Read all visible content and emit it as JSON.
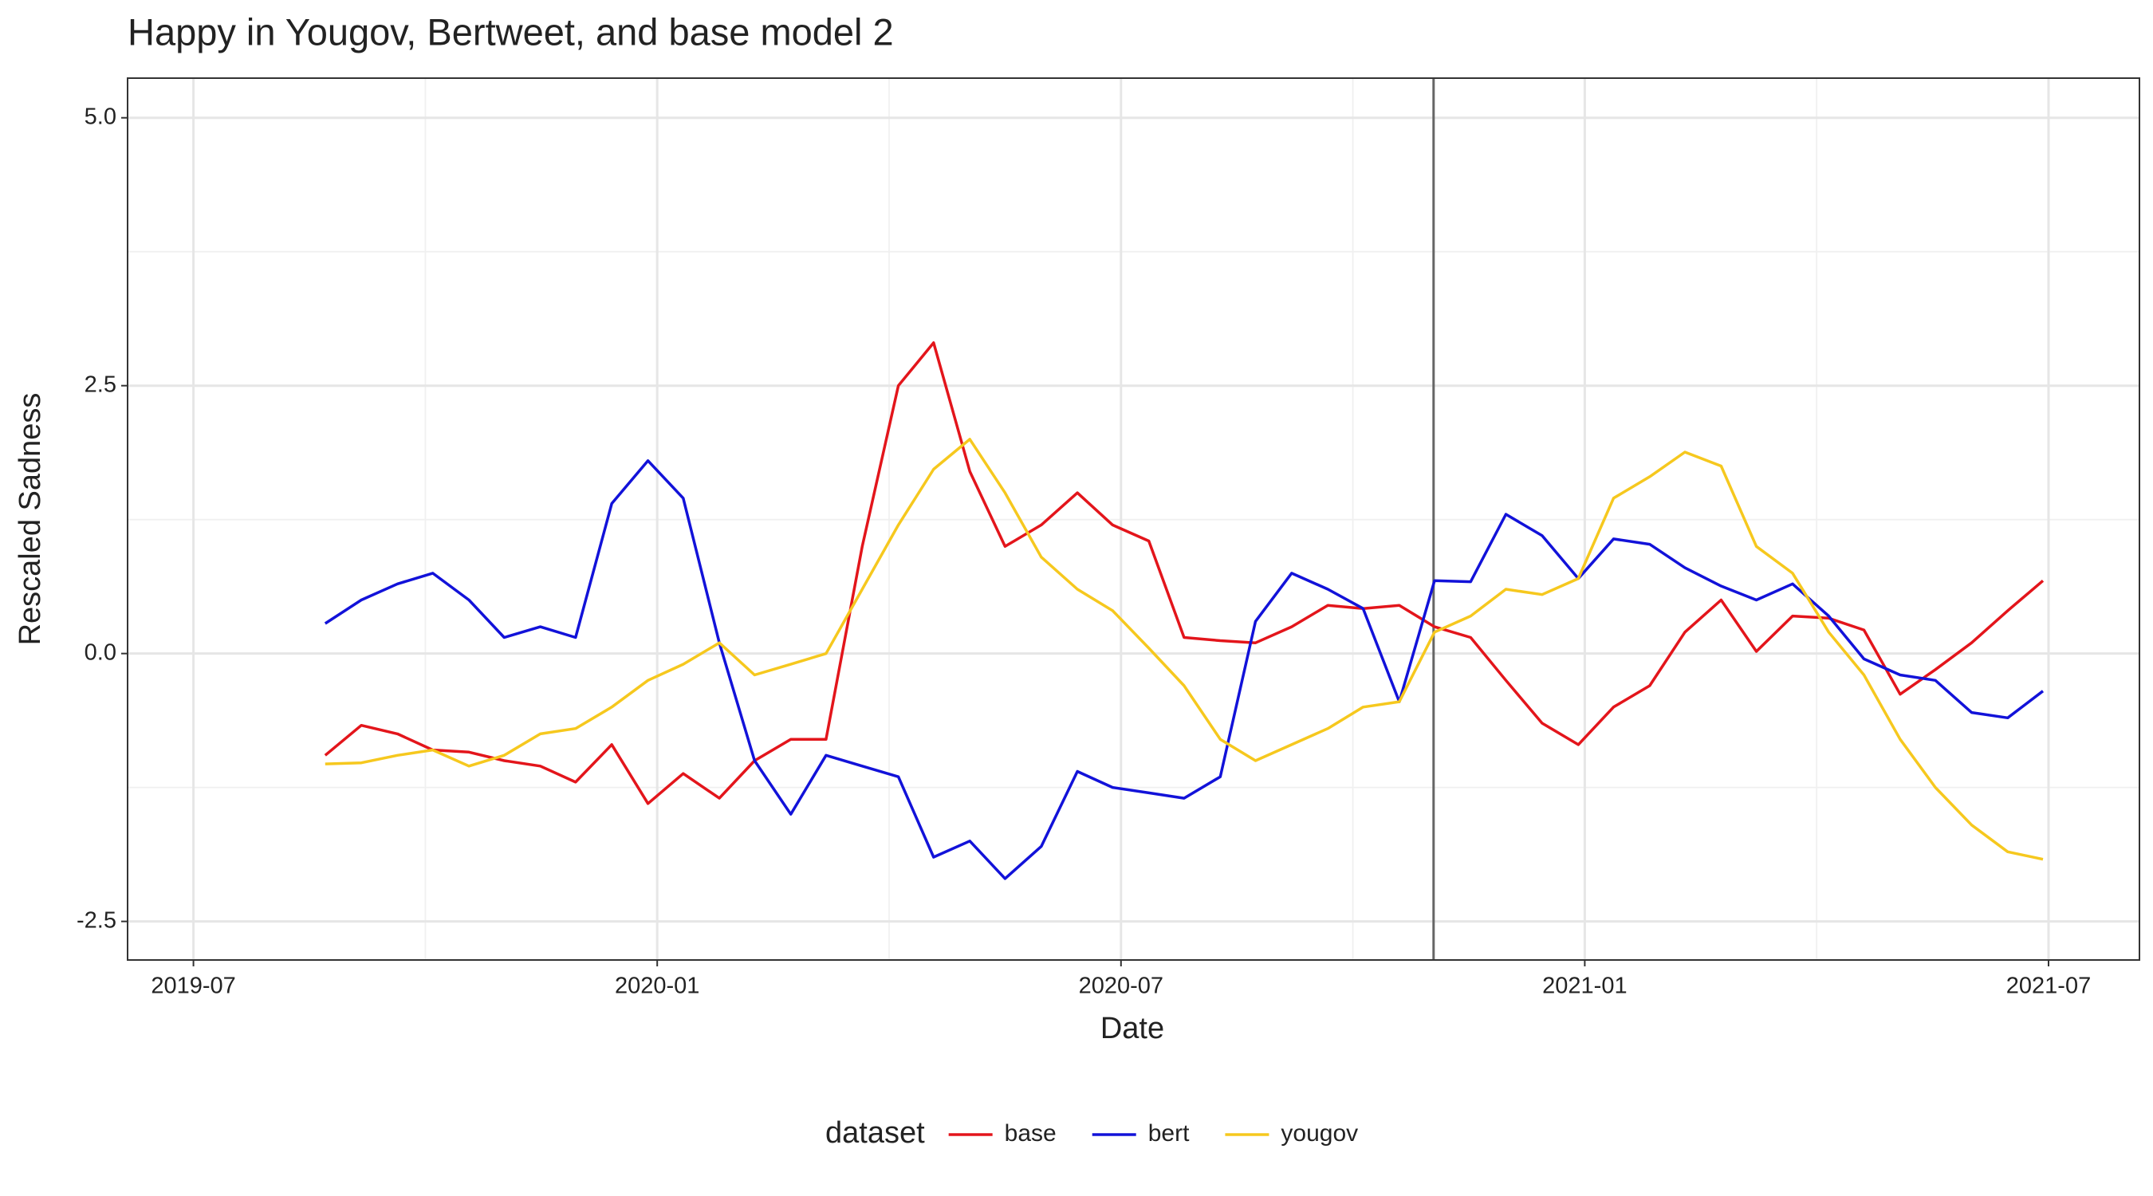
{
  "chart_data": {
    "type": "line",
    "title": "Happy in Yougov, Bertweet, and base model 2",
    "x_label": "Date",
    "y_label": "Rescaled Sadness",
    "legend_title": "dataset",
    "legend_position": "bottom",
    "grid": true,
    "xlim": [
      2019.429,
      2021.598
    ],
    "ylim": [
      -2.86,
      5.37
    ],
    "xticks": [
      {
        "value": 2019.5,
        "label": "2019-07"
      },
      {
        "value": 2020.0,
        "label": "2020-01"
      },
      {
        "value": 2020.5,
        "label": "2020-07"
      },
      {
        "value": 2021.0,
        "label": "2021-01"
      },
      {
        "value": 2021.5,
        "label": "2021-07"
      }
    ],
    "yticks": [
      -2.5,
      {
        "value": 0,
        "label": "0.0"
      },
      2.5,
      {
        "value": 5,
        "label": "5.0"
      }
    ],
    "minor_xticks": [
      2019.75,
      2020.25,
      2020.75,
      2021.25
    ],
    "minor_yticks": [
      -1.25,
      1.25,
      3.75
    ],
    "vline": 2020.837,
    "x": [
      2019.642,
      2019.681,
      2019.72,
      2019.758,
      2019.797,
      2019.835,
      2019.874,
      2019.912,
      2019.951,
      2019.99,
      2020.028,
      2020.067,
      2020.105,
      2020.144,
      2020.182,
      2020.221,
      2020.26,
      2020.298,
      2020.337,
      2020.375,
      2020.414,
      2020.453,
      2020.491,
      2020.53,
      2020.568,
      2020.607,
      2020.645,
      2020.684,
      2020.723,
      2020.761,
      2020.8,
      2020.838,
      2020.877,
      2020.915,
      2020.954,
      2020.993,
      2021.031,
      2021.07,
      2021.108,
      2021.147,
      2021.185,
      2021.224,
      2021.263,
      2021.301,
      2021.34,
      2021.378,
      2021.417,
      2021.456,
      2021.494
    ],
    "series": [
      {
        "name": "base",
        "color": "#e3151b",
        "values": [
          -0.95,
          -0.67,
          -0.75,
          -0.9,
          -0.92,
          -1.0,
          -1.05,
          -1.2,
          -0.85,
          -1.4,
          -1.12,
          -1.35,
          -1.0,
          -0.8,
          -0.8,
          1.0,
          2.5,
          2.9,
          1.7,
          1.0,
          1.2,
          1.5,
          1.2,
          1.05,
          0.15,
          0.12,
          0.1,
          0.25,
          0.45,
          0.42,
          0.45,
          0.25,
          0.15,
          -0.25,
          -0.65,
          -0.85,
          -0.5,
          -0.3,
          0.2,
          0.5,
          0.02,
          0.35,
          0.33,
          0.22,
          -0.38,
          -0.15,
          0.1,
          0.4,
          0.68
        ]
      },
      {
        "name": "bert",
        "color": "#1212d9",
        "values": [
          0.28,
          0.5,
          0.65,
          0.75,
          0.5,
          0.15,
          0.25,
          0.15,
          1.4,
          1.8,
          1.45,
          0.1,
          -1.0,
          -1.5,
          -0.95,
          -1.05,
          -1.15,
          -1.9,
          -1.75,
          -2.1,
          -1.8,
          -1.1,
          -1.25,
          -1.3,
          -1.35,
          -1.15,
          0.3,
          0.75,
          0.6,
          0.42,
          -0.45,
          0.68,
          0.67,
          1.3,
          1.1,
          0.7,
          1.07,
          1.02,
          0.8,
          0.63,
          0.5,
          0.65,
          0.35,
          -0.05,
          -0.2,
          -0.25,
          -0.55,
          -0.6,
          -0.35
        ]
      },
      {
        "name": "yougov",
        "color": "#f6c81e",
        "values": [
          -1.03,
          -1.02,
          -0.95,
          -0.9,
          -1.05,
          -0.95,
          -0.75,
          -0.7,
          -0.5,
          -0.25,
          -0.1,
          0.1,
          -0.2,
          -0.1,
          0.0,
          0.6,
          1.2,
          1.72,
          2.0,
          1.5,
          0.9,
          0.6,
          0.4,
          0.05,
          -0.3,
          -0.8,
          -1.0,
          -0.85,
          -0.7,
          -0.5,
          -0.45,
          0.2,
          0.35,
          0.6,
          0.55,
          0.7,
          1.45,
          1.65,
          1.88,
          1.75,
          1.0,
          0.75,
          0.2,
          -0.2,
          -0.8,
          -1.25,
          -1.6,
          -1.85,
          -1.92
        ]
      }
    ]
  }
}
